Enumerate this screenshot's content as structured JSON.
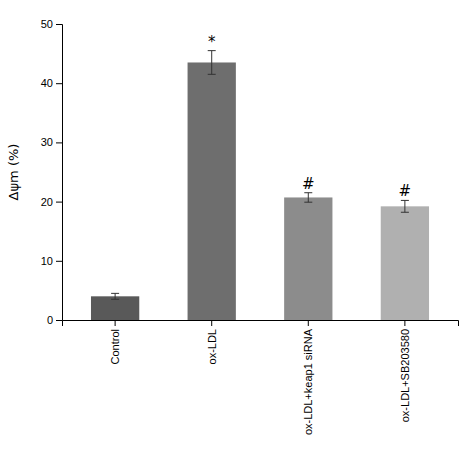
{
  "chart_data": {
    "type": "bar",
    "categories": [
      "Control",
      "ox-LDL",
      "ox-LDL+keap1 siRNA",
      "ox-LDL+SB203580"
    ],
    "values": [
      4.0,
      43.5,
      20.7,
      19.2
    ],
    "errors": [
      0.5,
      2.0,
      0.8,
      1.0
    ],
    "colors": [
      "#595959",
      "#6e6e6e",
      "#8c8c8c",
      "#b0b0b0"
    ],
    "annotations": [
      null,
      "*",
      "#",
      "#"
    ],
    "ylabel": "Δψm (%)",
    "ylim": [
      0,
      50
    ],
    "yticks": [
      0,
      10,
      20,
      30,
      40,
      50
    ],
    "grid": false
  }
}
